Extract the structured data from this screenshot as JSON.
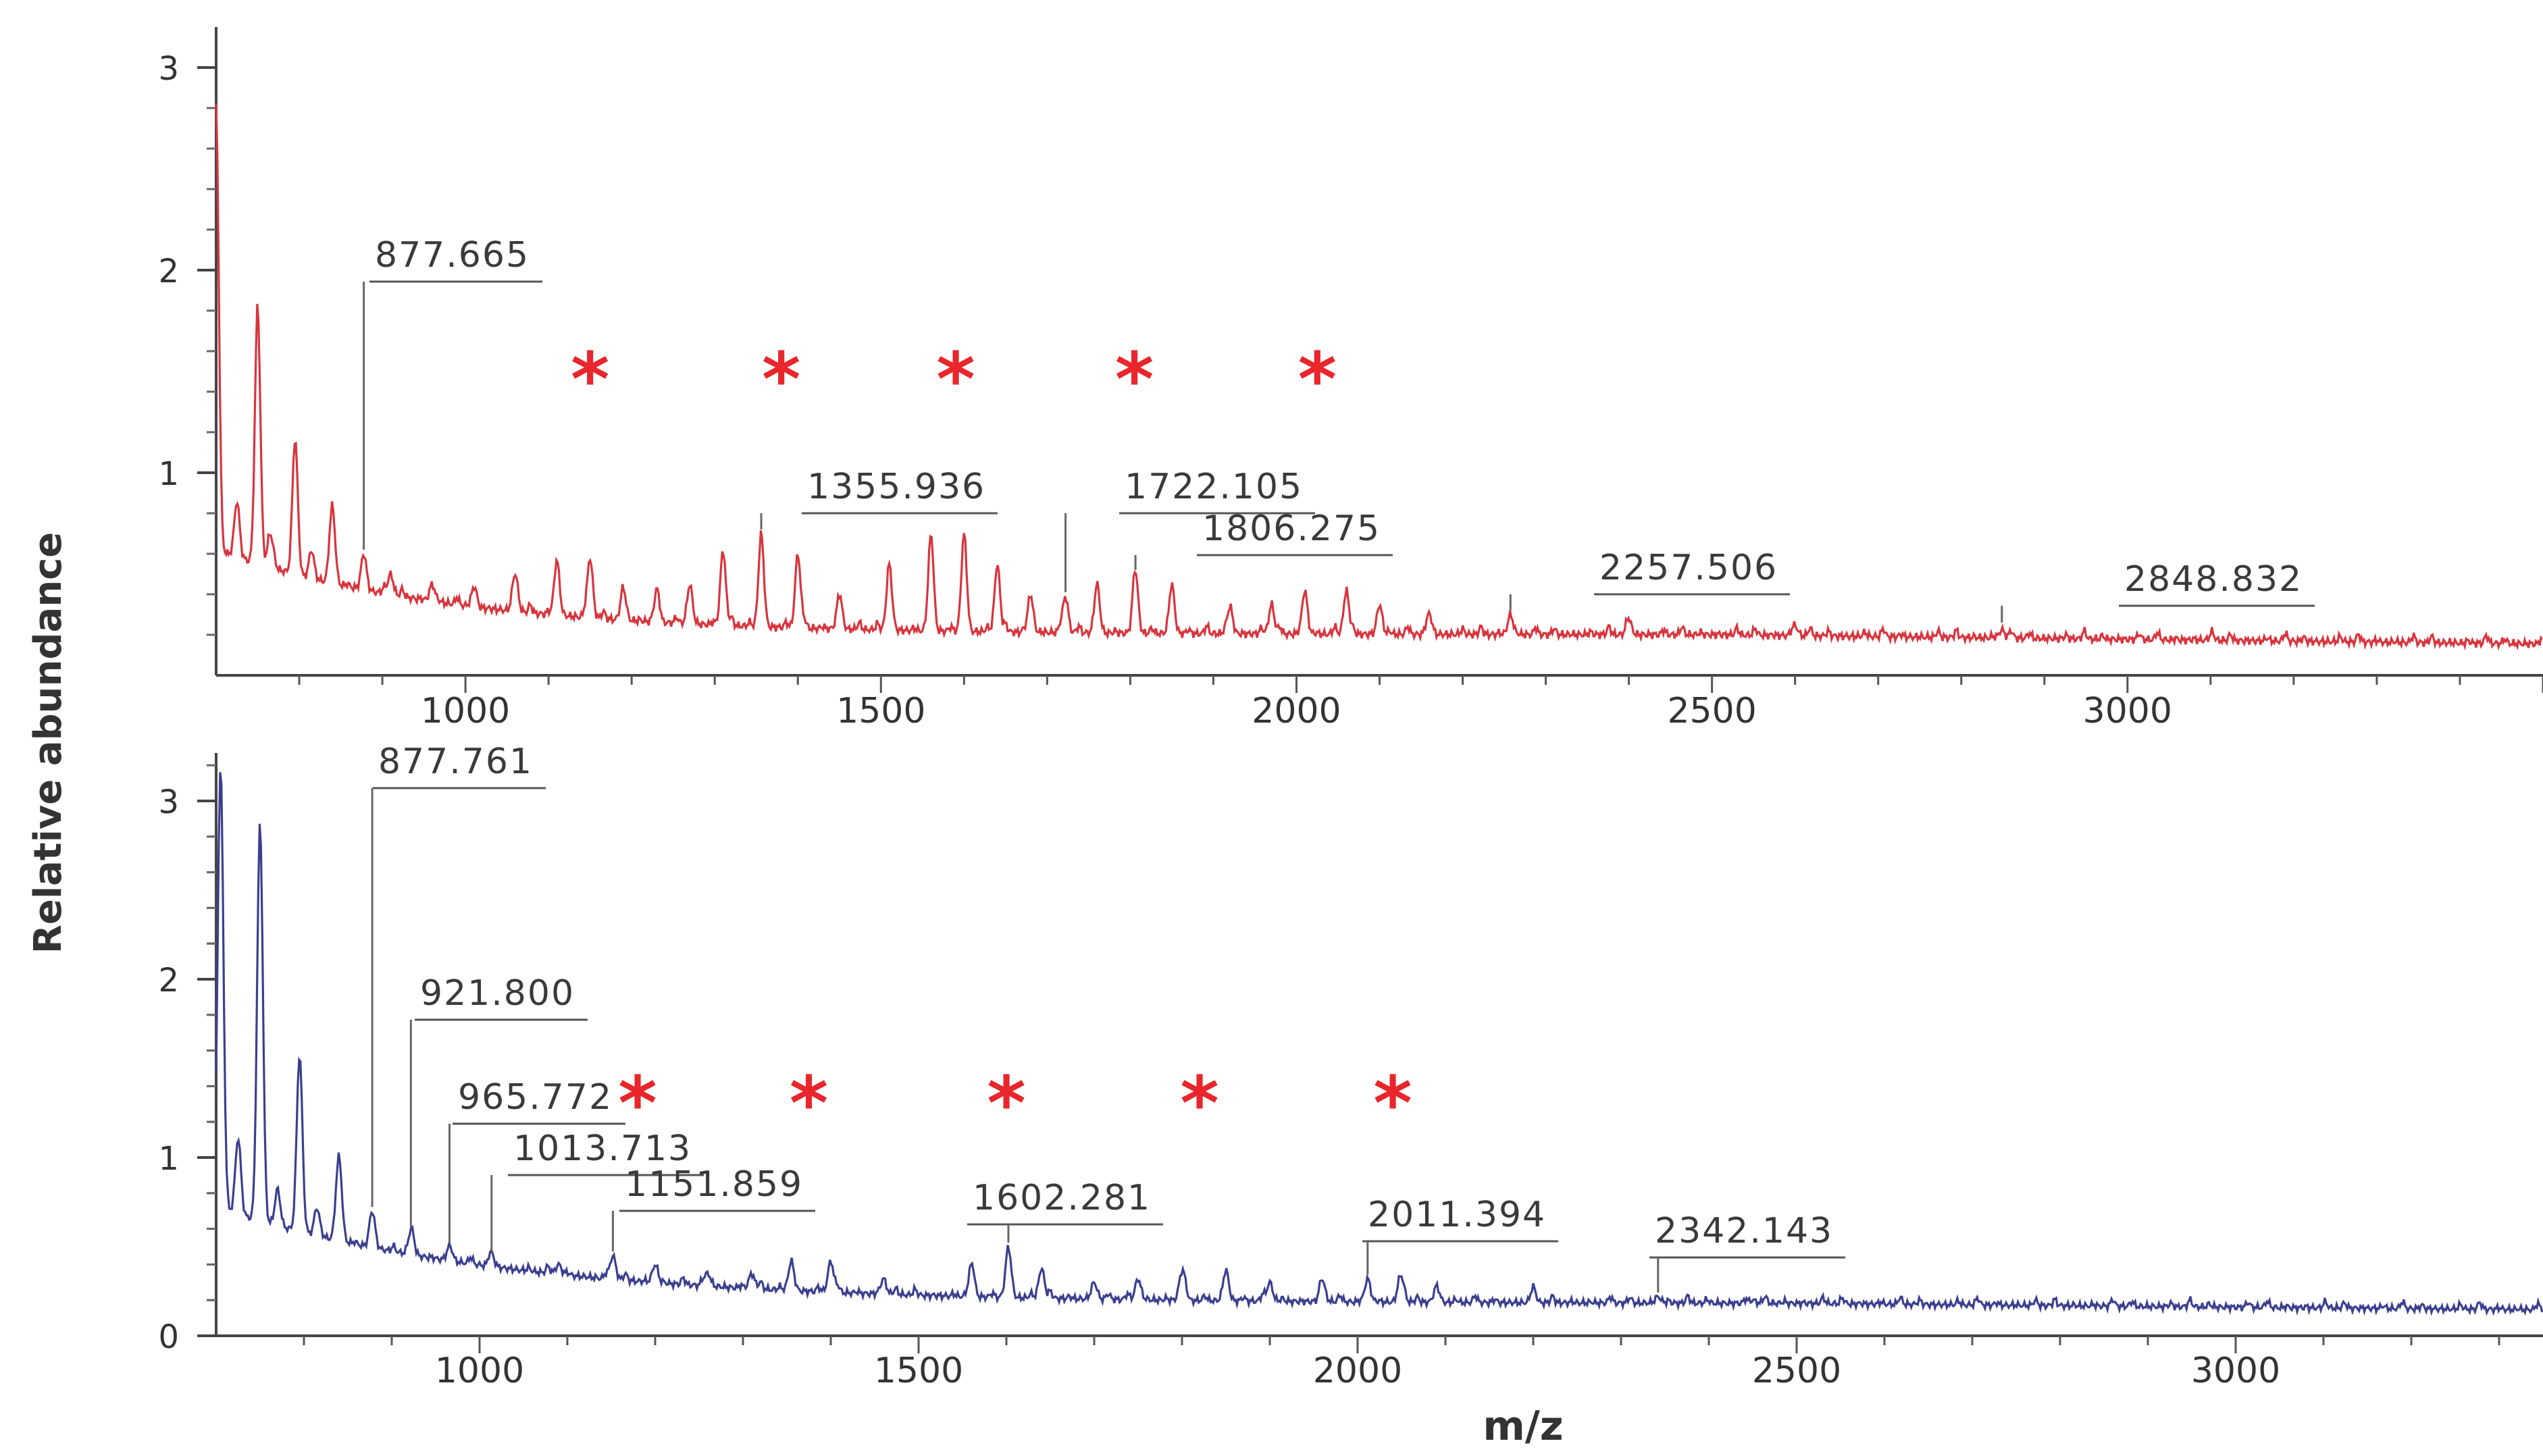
{
  "chart_data": {
    "type": "line",
    "shared": {
      "ylabel": "Relative abundance",
      "xlabel": "m/z",
      "marker_symbol": "*",
      "marker_color": "#e8262b"
    },
    "panels": [
      {
        "id": "top",
        "series_name": "spectrum-red",
        "color": "#d9343d",
        "xlim": [
          700,
          3500
        ],
        "ylim": [
          0,
          3.2
        ],
        "x_ticks": [
          1000,
          1500,
          2000,
          2500,
          3000
        ],
        "x_tick_labels": [
          "1000",
          "1500",
          "2000",
          "2500",
          "3000"
        ],
        "y_ticks": [
          1,
          2,
          3
        ],
        "y_tick_labels": [
          "1",
          "2",
          "3"
        ],
        "baseline": {
          "start": 0.62,
          "decay": 280,
          "floor": 0.2,
          "tail_slope": 4.5e-05
        },
        "peaks": [
          [
            700,
            2.8
          ],
          [
            725,
            0.85
          ],
          [
            750,
            1.8
          ],
          [
            765,
            0.7
          ],
          [
            795,
            1.17
          ],
          [
            815,
            0.6
          ],
          [
            840,
            0.83
          ],
          [
            877.665,
            0.6
          ],
          [
            910,
            0.5
          ],
          [
            960,
            0.45
          ],
          [
            1010,
            0.42
          ],
          [
            1060,
            0.5
          ],
          [
            1110,
            0.57
          ],
          [
            1150,
            0.58
          ],
          [
            1190,
            0.43
          ],
          [
            1230,
            0.4
          ],
          [
            1270,
            0.45
          ],
          [
            1310,
            0.62
          ],
          [
            1355.936,
            0.7
          ],
          [
            1400,
            0.6
          ],
          [
            1450,
            0.4
          ],
          [
            1510,
            0.55
          ],
          [
            1560,
            0.67
          ],
          [
            1600,
            0.7
          ],
          [
            1640,
            0.55
          ],
          [
            1680,
            0.4
          ],
          [
            1722.105,
            0.39
          ],
          [
            1760,
            0.45
          ],
          [
            1806.275,
            0.5
          ],
          [
            1850,
            0.45
          ],
          [
            1920,
            0.34
          ],
          [
            1970,
            0.35
          ],
          [
            2010,
            0.42
          ],
          [
            2060,
            0.42
          ],
          [
            2100,
            0.35
          ],
          [
            2160,
            0.3
          ],
          [
            2257.506,
            0.3
          ],
          [
            2400,
            0.27
          ],
          [
            2600,
            0.25
          ],
          [
            2848.832,
            0.24
          ],
          [
            3100,
            0.21
          ],
          [
            3300,
            0.2
          ]
        ],
        "peak_labels": [
          {
            "text": "877.665",
            "mz": 877.665
          },
          {
            "text": "1355.936",
            "mz": 1355.936
          },
          {
            "text": "1722.105",
            "mz": 1722.105
          },
          {
            "text": "1806.275",
            "mz": 1806.275
          },
          {
            "text": "2257.506",
            "mz": 2257.506
          },
          {
            "text": "2848.832",
            "mz": 2848.832
          }
        ],
        "star_mz": [
          1150,
          1380,
          1590,
          1805,
          2025
        ]
      },
      {
        "id": "bottom",
        "series_name": "spectrum-blue",
        "color": "#3b3f8f",
        "xlim": [
          700,
          3350
        ],
        "ylim": [
          0,
          3.2
        ],
        "x_ticks": [
          1000,
          1500,
          2000,
          2500,
          3000
        ],
        "x_tick_labels": [
          "1000",
          "1500",
          "2000",
          "2500",
          "3000"
        ],
        "y_ticks": [
          0,
          1,
          2,
          3
        ],
        "y_tick_labels": [
          "0",
          "1",
          "2",
          "3"
        ],
        "baseline": {
          "start": 0.72,
          "decay": 330,
          "floor": 0.18,
          "tail_slope": 4e-05
        },
        "peaks": [
          [
            705,
            3.2
          ],
          [
            725,
            1.1
          ],
          [
            750,
            2.85
          ],
          [
            770,
            0.8
          ],
          [
            795,
            1.58
          ],
          [
            815,
            0.7
          ],
          [
            840,
            1.0
          ],
          [
            877.761,
            0.7
          ],
          [
            921.8,
            0.58
          ],
          [
            965.772,
            0.5
          ],
          [
            1013.713,
            0.45
          ],
          [
            1090,
            0.4
          ],
          [
            1151.859,
            0.45
          ],
          [
            1200,
            0.4
          ],
          [
            1260,
            0.35
          ],
          [
            1310,
            0.35
          ],
          [
            1355,
            0.42
          ],
          [
            1400,
            0.42
          ],
          [
            1460,
            0.32
          ],
          [
            1560,
            0.38
          ],
          [
            1602.281,
            0.5
          ],
          [
            1640,
            0.38
          ],
          [
            1700,
            0.3
          ],
          [
            1750,
            0.32
          ],
          [
            1800,
            0.36
          ],
          [
            1850,
            0.37
          ],
          [
            1900,
            0.3
          ],
          [
            1960,
            0.3
          ],
          [
            2011.394,
            0.32
          ],
          [
            2050,
            0.33
          ],
          [
            2090,
            0.28
          ],
          [
            2200,
            0.25
          ],
          [
            2342.143,
            0.22
          ],
          [
            2450,
            0.2
          ]
        ],
        "peak_labels": [
          {
            "text": "877.761",
            "mz": 877.761
          },
          {
            "text": "921.800",
            "mz": 921.8
          },
          {
            "text": "965.772",
            "mz": 965.772
          },
          {
            "text": "1013.713",
            "mz": 1013.713
          },
          {
            "text": "1151.859",
            "mz": 1151.859
          },
          {
            "text": "1602.281",
            "mz": 1602.281
          },
          {
            "text": "2011.394",
            "mz": 2011.394
          },
          {
            "text": "2342.143",
            "mz": 2342.143
          }
        ],
        "star_mz": [
          1180,
          1375,
          1600,
          1820,
          2040
        ]
      }
    ]
  }
}
